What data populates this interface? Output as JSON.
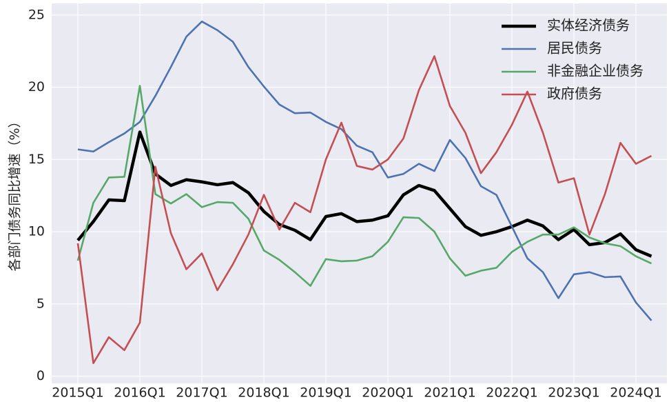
{
  "chart_data": {
    "type": "line",
    "y_label": "各部门债务同比增速（%）",
    "categories": [
      "2015Q1",
      null,
      null,
      null,
      "2016Q1",
      null,
      null,
      null,
      "2017Q1",
      null,
      null,
      null,
      "2018Q1",
      null,
      null,
      null,
      "2019Q1",
      null,
      null,
      null,
      "2020Q1",
      null,
      null,
      null,
      "2021Q1",
      null,
      null,
      null,
      "2022Q1",
      null,
      null,
      null,
      "2023Q1",
      null,
      null,
      null,
      "2024Q1",
      null
    ],
    "series": [
      {
        "name": "实体经济债务",
        "color": "#000000",
        "values": [
          9.4,
          10.7,
          12.2,
          12.15,
          16.9,
          14.0,
          13.2,
          13.6,
          13.45,
          13.25,
          13.4,
          12.7,
          11.4,
          10.5,
          10.1,
          9.45,
          11.05,
          11.25,
          10.7,
          10.8,
          11.1,
          12.55,
          13.2,
          12.85,
          11.6,
          10.35,
          9.75,
          10.0,
          10.35,
          10.8,
          10.4,
          9.45,
          10.15,
          9.1,
          9.25,
          9.85,
          8.75,
          8.3
        ]
      },
      {
        "name": "居民债务",
        "color": "#4c72b0",
        "values": [
          15.7,
          15.55,
          16.2,
          16.8,
          17.6,
          19.4,
          21.4,
          23.5,
          24.55,
          23.95,
          23.15,
          21.4,
          20.05,
          18.8,
          18.2,
          18.25,
          17.6,
          17.1,
          15.95,
          15.5,
          13.75,
          14.0,
          14.7,
          14.2,
          16.35,
          15.1,
          13.15,
          12.55,
          10.35,
          8.15,
          7.2,
          5.4,
          7.05,
          7.2,
          6.85,
          6.9,
          5.1,
          3.85
        ]
      },
      {
        "name": "非金融企业债务",
        "color": "#55a868",
        "values": [
          8.0,
          12.0,
          13.75,
          13.8,
          20.1,
          12.6,
          11.95,
          12.6,
          11.7,
          12.05,
          12.0,
          10.9,
          8.7,
          8.05,
          7.2,
          6.25,
          8.1,
          7.95,
          8.0,
          8.3,
          9.3,
          11.0,
          10.95,
          10.0,
          8.15,
          6.95,
          7.3,
          7.5,
          8.6,
          9.3,
          9.8,
          9.8,
          10.3,
          9.6,
          9.2,
          9.0,
          8.3,
          7.8
        ]
      },
      {
        "name": "政府债务",
        "color": "#c44e52",
        "values": [
          9.2,
          0.9,
          2.7,
          1.8,
          3.7,
          14.5,
          9.9,
          7.4,
          8.5,
          5.95,
          7.75,
          9.8,
          12.55,
          10.15,
          12.0,
          11.35,
          15.0,
          17.55,
          14.55,
          14.3,
          15.0,
          16.45,
          19.8,
          22.15,
          18.7,
          16.85,
          14.05,
          15.5,
          17.4,
          19.7,
          16.85,
          13.4,
          13.7,
          9.8,
          12.6,
          16.15,
          14.7,
          15.25
        ]
      }
    ],
    "ylim": [
      -0.5,
      25.8
    ],
    "yticks": [
      0,
      5,
      10,
      15,
      20,
      25
    ],
    "grid": true,
    "legend": "upper right"
  }
}
